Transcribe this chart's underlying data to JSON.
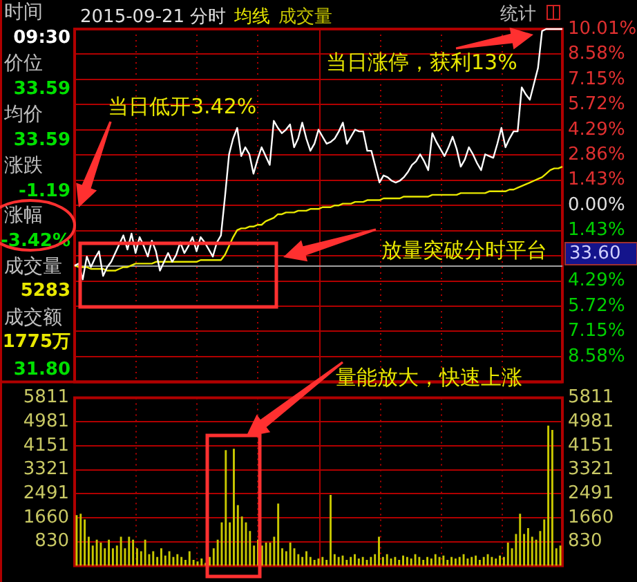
{
  "chart_data": [
    {
      "type": "line",
      "title": "2015-09-21 分时",
      "categories": [
        null,
        null,
        null,
        null,
        null,
        null,
        null,
        null,
        null,
        null,
        null,
        null,
        null,
        null,
        null,
        null,
        null,
        null,
        null,
        null,
        null,
        null,
        null,
        null,
        null,
        null,
        null,
        null,
        null,
        null,
        null,
        null,
        null,
        null,
        null,
        null,
        null,
        null,
        null,
        null,
        null,
        null,
        null,
        null,
        null,
        null,
        null,
        null,
        null,
        null,
        null,
        null,
        null,
        null,
        null,
        null,
        null,
        null,
        null,
        null,
        null,
        null,
        null,
        null,
        null,
        null,
        null,
        null,
        null,
        null,
        null,
        null,
        null,
        null,
        null,
        null,
        null,
        null,
        null,
        null,
        null,
        null,
        null,
        null,
        null,
        null,
        null,
        null,
        null,
        null,
        null,
        null,
        null,
        null,
        null,
        null,
        null,
        null,
        null,
        null,
        null,
        null,
        null,
        null,
        null,
        null,
        null,
        null,
        null,
        null,
        null,
        null,
        null,
        null,
        null,
        null,
        null,
        null,
        null,
        null,
        null
      ],
      "ylim": [
        -10.01,
        10.01
      ],
      "yticks": [
        {
          "value": 10.01,
          "label": "10.01%"
        },
        {
          "value": 8.58,
          "label": "8.58%"
        },
        {
          "value": 7.15,
          "label": "7.15%"
        },
        {
          "value": 5.72,
          "label": "5.72%"
        },
        {
          "value": 4.29,
          "label": "4.29%"
        },
        {
          "value": 2.86,
          "label": "2.86%"
        },
        {
          "value": 1.43,
          "label": "1.43%"
        },
        {
          "value": 0,
          "label": "0.00%"
        },
        {
          "value": -1.43,
          "label": "1.43%"
        },
        {
          "value": -2.86,
          "label": null
        },
        {
          "value": -4.29,
          "label": "4.29%"
        },
        {
          "value": -5.72,
          "label": "5.72%"
        },
        {
          "value": -7.15,
          "label": "7.15%"
        },
        {
          "value": -8.58,
          "label": "8.58%"
        }
      ],
      "tick_labels": "y",
      "grid": true,
      "ref_lines": [
        {
          "axis": "y",
          "value": -3.4,
          "color": "#a0a0a0"
        }
      ],
      "annotations": [
        "时间",
        "09:30",
        "价位",
        "33.59",
        "均价",
        "33.59",
        "涨跌",
        "-1.19",
        "涨幅",
        "-3.42%",
        "成交量",
        "5283",
        "成交额",
        "1775万",
        "31.80",
        "统计",
        "当日涨停，获利13%",
        "当日低开3.42%",
        "放量突破分时平台",
        "量能放大，快速上涨",
        "33.60"
      ],
      "series": [
        {
          "color": "#ffffff",
          "values": [
            -3.42,
            -3.3,
            -4.2,
            -2.9,
            -3.5,
            -3.0,
            -2.6,
            -4.0,
            -3.5,
            -3.2,
            -2.7,
            -2.2,
            -1.7,
            -2.5,
            -1.6,
            -2.7,
            -1.8,
            -2.3,
            -2.9,
            -2.0,
            -2.6,
            -3.7,
            -3.2,
            -2.7,
            -3.2,
            -2.8,
            -2.1,
            -2.7,
            -2.3,
            -1.8,
            -2.6,
            -1.8,
            -2.1,
            -2.5,
            -2.9,
            -2.1,
            -1.7,
            0.5,
            2.9,
            3.8,
            4.4,
            2.8,
            3.3,
            2.9,
            1.8,
            2.6,
            3.3,
            2.8,
            2.3,
            4.8,
            4.4,
            4.1,
            4.3,
            4.6,
            3.3,
            3.8,
            4.7,
            3.8,
            3.1,
            3.5,
            4.3,
            3.9,
            3.5,
            3.6,
            3.8,
            4.2,
            4.7,
            3.5,
            3.9,
            4.3,
            4.2,
            4.2,
            3.1,
            3.1,
            2.2,
            1.3,
            1.7,
            1.6,
            1.4,
            1.3,
            1.4,
            1.6,
            1.9,
            2.3,
            2.5,
            2.9,
            2.5,
            2.0,
            4.1,
            3.6,
            3.2,
            2.8,
            3.3,
            3.9,
            3.2,
            2.2,
            2.6,
            3.3,
            2.9,
            2.4,
            2.0,
            2.9,
            2.8,
            2.7,
            3.5,
            4.4,
            3.3,
            3.8,
            4.2,
            4.2,
            6.7,
            6.3,
            6.0,
            6.9,
            7.8,
            9.9,
            10.01,
            10.01,
            10.01,
            10.01,
            10.01
          ]
        },
        {
          "name": "均线",
          "color": "#e8e800",
          "values": [
            -3.4,
            -3.5,
            -3.5,
            -3.5,
            -3.6,
            -3.6,
            -3.6,
            -3.6,
            -3.7,
            -3.7,
            -3.7,
            -3.6,
            -3.5,
            -3.5,
            -3.4,
            -3.3,
            -3.3,
            -3.3,
            -3.3,
            -3.3,
            -3.2,
            -3.2,
            -3.2,
            -3.2,
            -3.2,
            -3.2,
            -3.2,
            -3.2,
            -3.2,
            -3.2,
            -3.2,
            -3.1,
            -3.1,
            -3.1,
            -3.1,
            -3.1,
            -3.1,
            -2.8,
            -2.3,
            -1.8,
            -1.4,
            -1.3,
            -1.3,
            -1.2,
            -1.2,
            -1.1,
            -1.1,
            -0.9,
            -0.8,
            -0.7,
            -0.5,
            -0.5,
            -0.4,
            -0.4,
            -0.4,
            -0.3,
            -0.3,
            -0.3,
            -0.2,
            -0.2,
            -0.2,
            -0.1,
            -0.1,
            -0.1,
            0,
            0,
            0.1,
            0.1,
            0.1,
            0.2,
            0.2,
            0.2,
            0.3,
            0.3,
            0.3,
            0.3,
            0.4,
            0.4,
            0.4,
            0.4,
            0.4,
            0.5,
            0.5,
            0.5,
            0.5,
            0.5,
            0.5,
            0.5,
            0.6,
            0.6,
            0.6,
            0.6,
            0.6,
            0.6,
            0.6,
            0.7,
            0.7,
            0.7,
            0.7,
            0.7,
            0.7,
            0.7,
            0.8,
            0.8,
            0.8,
            0.8,
            0.8,
            0.9,
            0.9,
            1.0,
            1.1,
            1.2,
            1.3,
            1.4,
            1.5,
            1.6,
            1.8,
            2.0,
            2.1,
            2.1,
            2.2
          ]
        }
      ]
    },
    {
      "type": "bar",
      "categories": [
        null,
        null,
        null,
        null,
        null,
        null,
        null,
        null,
        null,
        null,
        null,
        null,
        null,
        null,
        null,
        null,
        null,
        null,
        null,
        null,
        null,
        null,
        null,
        null,
        null,
        null,
        null,
        null,
        null,
        null,
        null,
        null,
        null,
        null,
        null,
        null,
        null,
        null,
        null,
        null,
        null,
        null,
        null,
        null,
        null,
        null,
        null,
        null,
        null,
        null,
        null,
        null,
        null,
        null,
        null,
        null,
        null,
        null,
        null,
        null,
        null,
        null,
        null,
        null,
        null,
        null,
        null,
        null,
        null,
        null,
        null,
        null,
        null,
        null,
        null,
        null,
        null,
        null,
        null,
        null,
        null,
        null,
        null,
        null,
        null,
        null,
        null,
        null,
        null,
        null,
        null,
        null,
        null,
        null,
        null,
        null,
        null,
        null,
        null,
        null,
        null,
        null,
        null,
        null,
        null,
        null,
        null,
        null,
        null,
        null,
        null,
        null,
        null,
        null,
        null,
        null,
        null,
        null,
        null,
        null,
        null
      ],
      "ylim": [
        0,
        5811
      ],
      "yticks": [
        830,
        1660,
        2491,
        3321,
        4151,
        4981,
        5811
      ],
      "y2lim": [
        0,
        5811
      ],
      "y2ticks": [
        830,
        1660,
        2491,
        3321,
        4151,
        4981,
        5811
      ],
      "tick_labels": "y",
      "grid": true,
      "series": [
        {
          "name": "成交量",
          "color": "#c8c800",
          "values": [
            1750,
            1800,
            1600,
            1000,
            700,
            900,
            800,
            600,
            900,
            600,
            700,
            1000,
            600,
            1000,
            900,
            600,
            500,
            900,
            400,
            500,
            300,
            600,
            350,
            500,
            300,
            400,
            300,
            200,
            500,
            200,
            150,
            250,
            100,
            300,
            600,
            900,
            1500,
            4000,
            1500,
            4050,
            2100,
            1700,
            1500,
            1200,
            700,
            900,
            700,
            800,
            800,
            1000,
            2150,
            600,
            500,
            800,
            600,
            400,
            300,
            500,
            300,
            200,
            250,
            300,
            200,
            2450,
            400,
            300,
            350,
            200,
            300,
            400,
            250,
            300,
            200,
            300,
            400,
            1000,
            300,
            400,
            250,
            300,
            200,
            350,
            300,
            250,
            400,
            300,
            200,
            300,
            250,
            400,
            300,
            350,
            200,
            300,
            250,
            300,
            400,
            250,
            300,
            350,
            200,
            300,
            400,
            300,
            250,
            350,
            300,
            800,
            600,
            1100,
            1800,
            1100,
            1300,
            1000,
            900,
            1200,
            1600,
            4850,
            4700,
            600,
            700
          ]
        }
      ]
    }
  ]
}
